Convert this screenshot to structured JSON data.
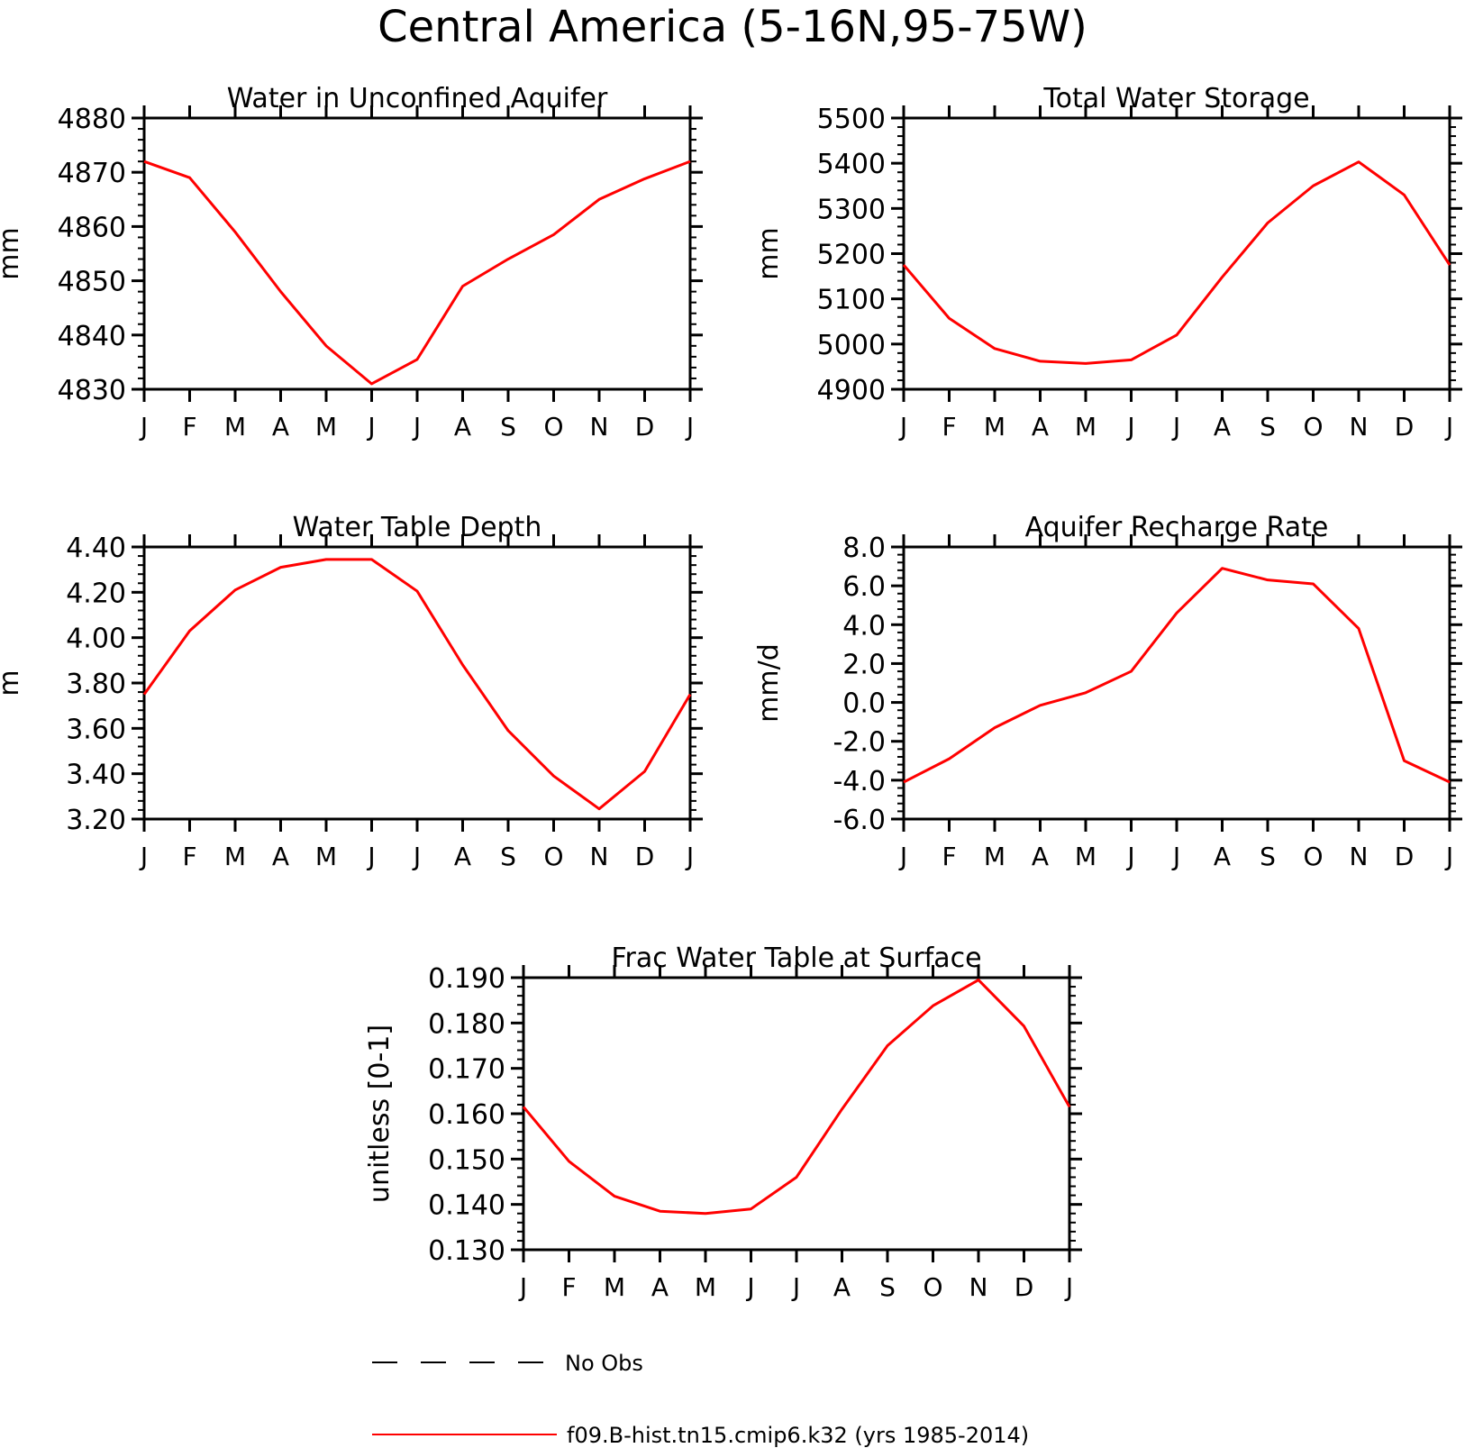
{
  "title": "Central America (5-16N,95-75W)",
  "months": [
    "J",
    "F",
    "M",
    "A",
    "M",
    "J",
    "J",
    "A",
    "S",
    "O",
    "N",
    "D",
    "J"
  ],
  "colors": {
    "model": "#ff0000",
    "obs": "#000000",
    "axes": "#000000"
  },
  "chart_data": [
    {
      "type": "line",
      "title": "Water in Unconfined Aquifer",
      "ylabel": "mm",
      "categories": [
        "J",
        "F",
        "M",
        "A",
        "M",
        "J",
        "J",
        "A",
        "S",
        "O",
        "N",
        "D",
        "J"
      ],
      "ylim": [
        4830,
        4880
      ],
      "yticks": [
        "4880",
        "4870",
        "4860",
        "4850",
        "4840",
        "4830"
      ],
      "series": [
        {
          "name": "f09.B-hist.tn15.cmip6.k32 (yrs 1985-2014)",
          "values": [
            4872,
            4869,
            4859,
            4848,
            4838,
            4831,
            4835.5,
            4849,
            4854,
            4858.5,
            4865,
            4868.8,
            4872
          ]
        }
      ]
    },
    {
      "type": "line",
      "title": "Total Water Storage",
      "ylabel": "mm",
      "categories": [
        "J",
        "F",
        "M",
        "A",
        "M",
        "J",
        "J",
        "A",
        "S",
        "O",
        "N",
        "D",
        "J"
      ],
      "ylim": [
        4900,
        5500
      ],
      "yticks": [
        "5500",
        "5400",
        "5300",
        "5200",
        "5100",
        "5000",
        "4900"
      ],
      "series": [
        {
          "name": "f09.B-hist.tn15.cmip6.k32 (yrs 1985-2014)",
          "values": [
            5175,
            5057,
            4990,
            4962,
            4957,
            4965,
            5020,
            5148,
            5268,
            5350,
            5403,
            5330,
            5175
          ]
        }
      ]
    },
    {
      "type": "line",
      "title": "Water Table Depth",
      "ylabel": "m",
      "categories": [
        "J",
        "F",
        "M",
        "A",
        "M",
        "J",
        "J",
        "A",
        "S",
        "O",
        "N",
        "D",
        "J"
      ],
      "ylim": [
        3.2,
        4.4
      ],
      "yticks": [
        "4.40",
        "4.20",
        "4.00",
        "3.80",
        "3.60",
        "3.40",
        "3.20"
      ],
      "series": [
        {
          "name": "f09.B-hist.tn15.cmip6.k32 (yrs 1985-2014)",
          "values": [
            3.75,
            4.03,
            4.21,
            4.31,
            4.345,
            4.345,
            4.205,
            3.88,
            3.59,
            3.39,
            3.245,
            3.41,
            3.75
          ]
        }
      ]
    },
    {
      "type": "line",
      "title": "Aquifer Recharge Rate",
      "ylabel": "mm/d",
      "categories": [
        "J",
        "F",
        "M",
        "A",
        "M",
        "J",
        "J",
        "A",
        "S",
        "O",
        "N",
        "D",
        "J"
      ],
      "ylim": [
        -6.0,
        8.0
      ],
      "yticks": [
        "8.0",
        "6.0",
        "4.0",
        "2.0",
        "0.0",
        "-2.0",
        "-4.0",
        "-6.0"
      ],
      "series": [
        {
          "name": "f09.B-hist.tn15.cmip6.k32 (yrs 1985-2014)",
          "values": [
            -4.1,
            -2.9,
            -1.3,
            -0.15,
            0.5,
            1.6,
            4.6,
            6.9,
            6.3,
            6.1,
            3.8,
            -3.0,
            -4.1
          ]
        }
      ]
    },
    {
      "type": "line",
      "title": "Frac Water Table at Surface",
      "ylabel": "unitless [0-1]",
      "categories": [
        "J",
        "F",
        "M",
        "A",
        "M",
        "J",
        "J",
        "A",
        "S",
        "O",
        "N",
        "D",
        "J"
      ],
      "ylim": [
        0.13,
        0.19
      ],
      "yticks": [
        "0.190",
        "0.180",
        "0.170",
        "0.160",
        "0.150",
        "0.140",
        "0.130"
      ],
      "series": [
        {
          "name": "f09.B-hist.tn15.cmip6.k32 (yrs 1985-2014)",
          "values": [
            0.1615,
            0.1495,
            0.1418,
            0.1385,
            0.138,
            0.139,
            0.146,
            0.161,
            0.175,
            0.1838,
            0.1895,
            0.1793,
            0.1615
          ]
        }
      ]
    }
  ],
  "legend": {
    "obs_label": "No Obs",
    "model_label": "f09.B-hist.tn15.cmip6.k32 (yrs 1985-2014)"
  }
}
